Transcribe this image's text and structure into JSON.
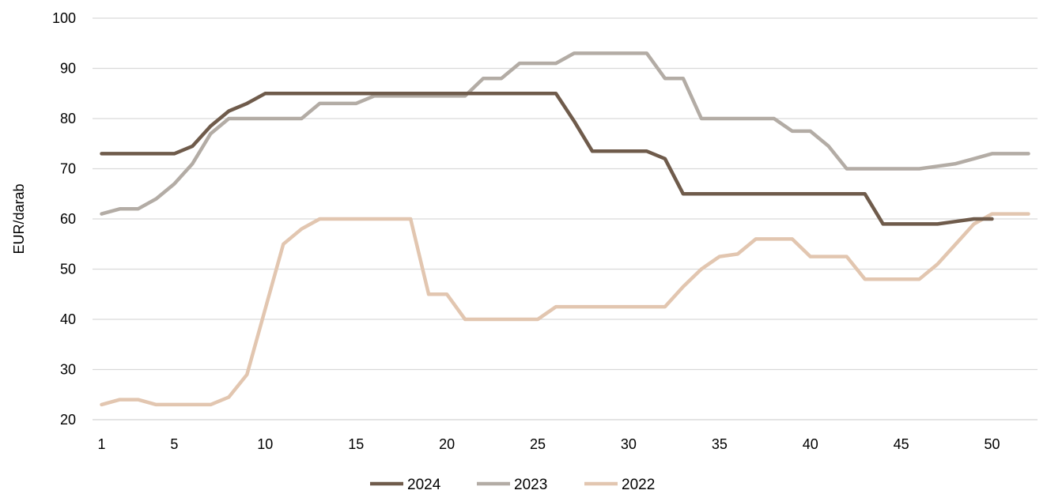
{
  "chart_data": {
    "type": "line",
    "ylabel": "EUR/darab",
    "xlabel": "",
    "xlim": [
      1,
      52
    ],
    "ylim": [
      20,
      100
    ],
    "y_ticks": [
      20,
      30,
      40,
      50,
      60,
      70,
      80,
      90,
      100
    ],
    "x_ticks": [
      1,
      5,
      10,
      15,
      20,
      25,
      30,
      35,
      40,
      45,
      50
    ],
    "grid": "horizontal",
    "legend_position": "bottom",
    "series": [
      {
        "name": "2024",
        "color": "#6f5b4b",
        "x": [
          1,
          2,
          3,
          4,
          5,
          6,
          7,
          8,
          9,
          10,
          11,
          12,
          13,
          14,
          15,
          16,
          17,
          18,
          19,
          20,
          21,
          22,
          23,
          24,
          25,
          26,
          27,
          28,
          29,
          30,
          31,
          32,
          33,
          34,
          35,
          36,
          37,
          38,
          39,
          40,
          41,
          42,
          43,
          44,
          45,
          46,
          47,
          48,
          49,
          50
        ],
        "values": [
          73,
          73,
          73,
          73,
          73,
          74.5,
          78.5,
          81.5,
          83,
          85,
          85,
          85,
          85,
          85,
          85,
          85,
          85,
          85,
          85,
          85,
          85,
          85,
          85,
          85,
          85,
          85,
          79.5,
          73.5,
          73.5,
          73.5,
          73.5,
          72,
          65,
          65,
          65,
          65,
          65,
          65,
          65,
          65,
          65,
          65,
          65,
          59,
          59,
          59,
          59,
          59.5,
          60,
          60
        ]
      },
      {
        "name": "2023",
        "color": "#b3aca5",
        "x": [
          1,
          2,
          3,
          4,
          5,
          6,
          7,
          8,
          9,
          10,
          11,
          12,
          13,
          14,
          15,
          16,
          17,
          18,
          19,
          20,
          21,
          22,
          23,
          24,
          25,
          26,
          27,
          28,
          29,
          30,
          31,
          32,
          33,
          34,
          35,
          36,
          37,
          38,
          39,
          40,
          41,
          42,
          43,
          44,
          45,
          46,
          47,
          48,
          49,
          50,
          51,
          52
        ],
        "values": [
          61,
          62,
          62,
          64,
          67,
          71,
          77,
          80,
          80,
          80,
          80,
          80,
          83,
          83,
          83,
          84.5,
          84.5,
          84.5,
          84.5,
          84.5,
          84.5,
          88,
          88,
          91,
          91,
          91,
          93,
          93,
          93,
          93,
          93,
          88,
          88,
          80,
          80,
          80,
          80,
          80,
          77.5,
          77.5,
          74.5,
          70,
          70,
          70,
          70,
          70,
          70.5,
          71,
          72,
          73,
          73,
          73
        ]
      },
      {
        "name": "2022",
        "color": "#e2c6b0",
        "x": [
          1,
          2,
          3,
          4,
          5,
          6,
          7,
          8,
          9,
          10,
          11,
          12,
          13,
          14,
          15,
          16,
          17,
          18,
          19,
          20,
          21,
          22,
          23,
          24,
          25,
          26,
          27,
          28,
          29,
          30,
          31,
          32,
          33,
          34,
          35,
          36,
          37,
          38,
          39,
          40,
          41,
          42,
          43,
          44,
          45,
          46,
          47,
          48,
          49,
          50,
          51,
          52
        ],
        "values": [
          23,
          24,
          24,
          23,
          23,
          23,
          23,
          24.5,
          29,
          42,
          55,
          58,
          60,
          60,
          60,
          60,
          60,
          60,
          45,
          45,
          40,
          40,
          40,
          40,
          40,
          42.5,
          42.5,
          42.5,
          42.5,
          42.5,
          42.5,
          42.5,
          46.5,
          50,
          52.5,
          53,
          56,
          56,
          56,
          52.5,
          52.5,
          52.5,
          48,
          48,
          48,
          48,
          51,
          55,
          59,
          61,
          61,
          61
        ]
      }
    ]
  }
}
